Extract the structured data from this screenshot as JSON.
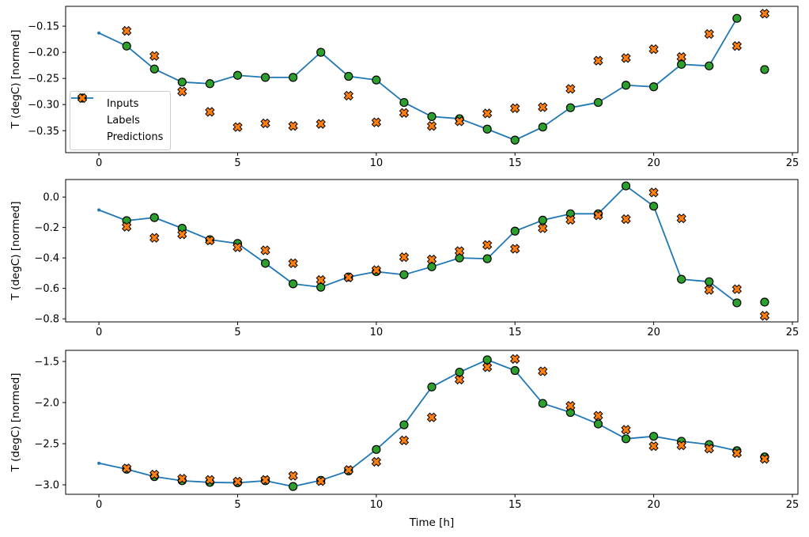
{
  "legend": {
    "items": [
      {
        "label": "Inputs",
        "swatch": "line",
        "color": "#1f77b4",
        "edge": "#000000"
      },
      {
        "label": "Labels",
        "swatch": "circle",
        "color": "#2ca02c",
        "edge": "#000000"
      },
      {
        "label": "Predictions",
        "swatch": "x",
        "color": "#ff7f0e",
        "edge": "#000000"
      }
    ],
    "location": "center-left-of-top-subplot"
  },
  "chart_data": [
    {
      "type": "line",
      "title": "",
      "xlabel": "",
      "ylabel": "T (degC) [normed]",
      "xlim": [
        -1.2,
        25.2
      ],
      "ylim": [
        -0.392,
        -0.112
      ],
      "xticks": [
        0,
        5,
        10,
        15,
        20,
        25
      ],
      "yticks": [
        -0.15,
        -0.2,
        -0.25,
        -0.3,
        -0.35
      ],
      "ytick_labels": [
        "−0.15",
        "−0.20",
        "−0.25",
        "−0.30",
        "−0.35"
      ],
      "grid": false,
      "series": [
        {
          "name": "Inputs",
          "kind": "line",
          "marker": "dot",
          "color": "#1f77b4",
          "x": [
            0,
            1,
            2,
            3,
            4,
            5,
            6,
            7,
            8,
            9,
            10,
            11,
            12,
            13,
            14,
            15,
            16,
            17,
            18,
            19,
            20,
            21,
            22,
            23
          ],
          "y": [
            -0.163,
            -0.188,
            -0.232,
            -0.257,
            -0.26,
            -0.244,
            -0.248,
            -0.248,
            -0.2,
            -0.246,
            -0.253,
            -0.296,
            -0.323,
            -0.327,
            -0.347,
            -0.368,
            -0.343,
            -0.306,
            -0.296,
            -0.263,
            -0.266,
            -0.223,
            -0.226,
            -0.135
          ]
        },
        {
          "name": "Labels",
          "kind": "scatter",
          "marker": "circle",
          "color": "#2ca02c",
          "edge": "#000000",
          "x": [
            1,
            2,
            3,
            4,
            5,
            6,
            7,
            8,
            9,
            10,
            11,
            12,
            13,
            14,
            15,
            16,
            17,
            18,
            19,
            20,
            21,
            22,
            23,
            24
          ],
          "y": [
            -0.188,
            -0.232,
            -0.257,
            -0.26,
            -0.244,
            -0.248,
            -0.248,
            -0.2,
            -0.246,
            -0.253,
            -0.296,
            -0.323,
            -0.327,
            -0.347,
            -0.368,
            -0.343,
            -0.306,
            -0.296,
            -0.263,
            -0.266,
            -0.223,
            -0.226,
            -0.135,
            -0.233
          ]
        },
        {
          "name": "Predictions",
          "kind": "scatter",
          "marker": "X",
          "color": "#ff7f0e",
          "edge": "#000000",
          "x": [
            1,
            2,
            3,
            4,
            5,
            6,
            7,
            8,
            9,
            10,
            11,
            12,
            13,
            14,
            15,
            16,
            17,
            18,
            19,
            20,
            21,
            22,
            23,
            24
          ],
          "y": [
            -0.159,
            -0.207,
            -0.275,
            -0.314,
            -0.343,
            -0.336,
            -0.341,
            -0.337,
            -0.283,
            -0.334,
            -0.316,
            -0.341,
            -0.332,
            -0.317,
            -0.307,
            -0.305,
            -0.27,
            -0.216,
            -0.211,
            -0.194,
            -0.209,
            -0.165,
            -0.188,
            -0.126
          ]
        }
      ]
    },
    {
      "type": "line",
      "title": "",
      "xlabel": "",
      "ylabel": "T (degC) [normed]",
      "xlim": [
        -1.2,
        25.2
      ],
      "ylim": [
        -0.82,
        0.115
      ],
      "xticks": [
        0,
        5,
        10,
        15,
        20,
        25
      ],
      "yticks": [
        0.0,
        -0.2,
        -0.4,
        -0.6,
        -0.8
      ],
      "ytick_labels": [
        "0.0",
        "−0.2",
        "−0.4",
        "−0.6",
        "−0.8"
      ],
      "grid": false,
      "series": [
        {
          "name": "Inputs",
          "kind": "line",
          "marker": "dot",
          "color": "#1f77b4",
          "x": [
            0,
            1,
            2,
            3,
            4,
            5,
            6,
            7,
            8,
            9,
            10,
            11,
            12,
            13,
            14,
            15,
            16,
            17,
            18,
            19,
            20,
            21,
            22,
            23
          ],
          "y": [
            -0.085,
            -0.155,
            -0.135,
            -0.205,
            -0.28,
            -0.305,
            -0.435,
            -0.57,
            -0.592,
            -0.525,
            -0.49,
            -0.51,
            -0.458,
            -0.4,
            -0.405,
            -0.224,
            -0.152,
            -0.11,
            -0.11,
            0.073,
            -0.06,
            -0.54,
            -0.556,
            -0.695
          ]
        },
        {
          "name": "Labels",
          "kind": "scatter",
          "marker": "circle",
          "color": "#2ca02c",
          "edge": "#000000",
          "x": [
            1,
            2,
            3,
            4,
            5,
            6,
            7,
            8,
            9,
            10,
            11,
            12,
            13,
            14,
            15,
            16,
            17,
            18,
            19,
            20,
            21,
            22,
            23,
            24
          ],
          "y": [
            -0.155,
            -0.135,
            -0.205,
            -0.28,
            -0.305,
            -0.435,
            -0.57,
            -0.592,
            -0.525,
            -0.49,
            -0.51,
            -0.458,
            -0.4,
            -0.405,
            -0.224,
            -0.152,
            -0.11,
            -0.11,
            0.073,
            -0.06,
            -0.54,
            -0.556,
            -0.695,
            -0.69
          ]
        },
        {
          "name": "Predictions",
          "kind": "scatter",
          "marker": "X",
          "color": "#ff7f0e",
          "edge": "#000000",
          "x": [
            1,
            2,
            3,
            4,
            5,
            6,
            7,
            8,
            9,
            10,
            11,
            12,
            13,
            14,
            15,
            16,
            17,
            18,
            19,
            20,
            21,
            22,
            23,
            24
          ],
          "y": [
            -0.195,
            -0.268,
            -0.245,
            -0.285,
            -0.33,
            -0.35,
            -0.435,
            -0.545,
            -0.528,
            -0.48,
            -0.395,
            -0.41,
            -0.355,
            -0.315,
            -0.34,
            -0.205,
            -0.15,
            -0.12,
            -0.145,
            0.03,
            -0.14,
            -0.61,
            -0.605,
            -0.78
          ]
        }
      ]
    },
    {
      "type": "line",
      "title": "",
      "xlabel": "Time [h]",
      "ylabel": "T (degC) [normed]",
      "xlim": [
        -1.2,
        25.2
      ],
      "ylim": [
        -3.115,
        -1.365
      ],
      "xticks": [
        0,
        5,
        10,
        15,
        20,
        25
      ],
      "yticks": [
        -1.5,
        -2.0,
        -2.5,
        -3.0
      ],
      "ytick_labels": [
        "−1.5",
        "−2.0",
        "−2.5",
        "−3.0"
      ],
      "grid": false,
      "series": [
        {
          "name": "Inputs",
          "kind": "line",
          "marker": "dot",
          "color": "#1f77b4",
          "x": [
            0,
            1,
            2,
            3,
            4,
            5,
            6,
            7,
            8,
            9,
            10,
            11,
            12,
            13,
            14,
            15,
            16,
            17,
            18,
            19,
            20,
            21,
            22,
            23
          ],
          "y": [
            -2.737,
            -2.81,
            -2.9,
            -2.95,
            -2.97,
            -2.975,
            -2.95,
            -3.02,
            -2.945,
            -2.83,
            -2.57,
            -2.27,
            -1.81,
            -1.63,
            -1.48,
            -1.61,
            -2.01,
            -2.12,
            -2.26,
            -2.44,
            -2.41,
            -2.47,
            -2.51,
            -2.585
          ]
        },
        {
          "name": "Labels",
          "kind": "scatter",
          "marker": "circle",
          "color": "#2ca02c",
          "edge": "#000000",
          "x": [
            1,
            2,
            3,
            4,
            5,
            6,
            7,
            8,
            9,
            10,
            11,
            12,
            13,
            14,
            15,
            16,
            17,
            18,
            19,
            20,
            21,
            22,
            23,
            24
          ],
          "y": [
            -2.81,
            -2.9,
            -2.95,
            -2.97,
            -2.975,
            -2.95,
            -3.02,
            -2.945,
            -2.83,
            -2.57,
            -2.27,
            -1.81,
            -1.63,
            -1.48,
            -1.61,
            -2.01,
            -2.12,
            -2.26,
            -2.44,
            -2.41,
            -2.47,
            -2.51,
            -2.585,
            -2.66
          ]
        },
        {
          "name": "Predictions",
          "kind": "scatter",
          "marker": "X",
          "color": "#ff7f0e",
          "edge": "#000000",
          "x": [
            1,
            2,
            3,
            4,
            5,
            6,
            7,
            8,
            9,
            10,
            11,
            12,
            13,
            14,
            15,
            16,
            17,
            18,
            19,
            20,
            21,
            22,
            23,
            24
          ],
          "y": [
            -2.8,
            -2.875,
            -2.925,
            -2.94,
            -2.96,
            -2.94,
            -2.89,
            -2.955,
            -2.82,
            -2.72,
            -2.46,
            -2.18,
            -1.72,
            -1.57,
            -1.47,
            -1.62,
            -2.04,
            -2.16,
            -2.33,
            -2.53,
            -2.52,
            -2.56,
            -2.615,
            -2.685
          ]
        }
      ]
    }
  ]
}
